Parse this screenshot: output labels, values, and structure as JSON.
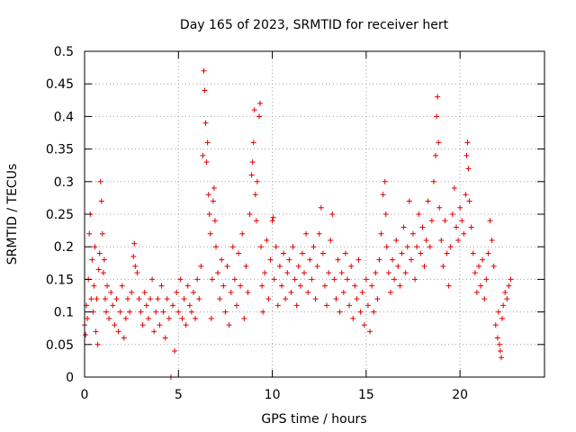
{
  "chart_data": {
    "type": "scatter",
    "title": "Day 165 of 2023, SRMTID for receiver hert",
    "xlabel": "GPS time / hours",
    "ylabel": "SRMTID / TECUs",
    "xlim": [
      0,
      24.5
    ],
    "ylim": [
      0,
      0.5
    ],
    "xticks": [
      0,
      5,
      10,
      15,
      20
    ],
    "xtick_labels": [
      "0",
      "5",
      "10",
      "15",
      "20"
    ],
    "yticks": [
      0,
      0.05,
      0.1,
      0.15,
      0.2,
      0.25,
      0.3,
      0.35,
      0.4,
      0.45,
      0.5
    ],
    "ytick_labels": [
      "0",
      "0.05",
      "0.1",
      "0.15",
      "0.2",
      "0.25",
      "0.3",
      "0.35",
      "0.4",
      "0.45",
      "0.5"
    ],
    "grid": true,
    "marker": "plus",
    "color": "#e00000",
    "series": [
      {
        "name": "SRMTID",
        "points": [
          [
            0.0,
            0.08
          ],
          [
            0.05,
            0.065
          ],
          [
            0.1,
            0.11
          ],
          [
            0.15,
            0.09
          ],
          [
            0.2,
            0.15
          ],
          [
            0.25,
            0.22
          ],
          [
            0.3,
            0.25
          ],
          [
            0.35,
            0.12
          ],
          [
            0.4,
            0.18
          ],
          [
            0.45,
            0.1
          ],
          [
            0.5,
            0.14
          ],
          [
            0.55,
            0.2
          ],
          [
            0.6,
            0.07
          ],
          [
            0.65,
            0.12
          ],
          [
            0.7,
            0.05
          ],
          [
            0.75,
            0.165
          ],
          [
            0.8,
            0.19
          ],
          [
            0.85,
            0.3
          ],
          [
            0.9,
            0.27
          ],
          [
            0.95,
            0.22
          ],
          [
            1.0,
            0.16
          ],
          [
            1.05,
            0.18
          ],
          [
            1.1,
            0.12
          ],
          [
            1.15,
            0.1
          ],
          [
            1.2,
            0.14
          ],
          [
            1.3,
            0.09
          ],
          [
            1.4,
            0.13
          ],
          [
            1.5,
            0.11
          ],
          [
            1.6,
            0.08
          ],
          [
            1.7,
            0.12
          ],
          [
            1.8,
            0.07
          ],
          [
            1.9,
            0.1
          ],
          [
            2.0,
            0.14
          ],
          [
            2.1,
            0.06
          ],
          [
            2.2,
            0.09
          ],
          [
            2.3,
            0.12
          ],
          [
            2.4,
            0.1
          ],
          [
            2.5,
            0.13
          ],
          [
            2.6,
            0.185
          ],
          [
            2.65,
            0.205
          ],
          [
            2.7,
            0.17
          ],
          [
            2.8,
            0.16
          ],
          [
            2.9,
            0.12
          ],
          [
            3.0,
            0.1
          ],
          [
            3.1,
            0.08
          ],
          [
            3.2,
            0.13
          ],
          [
            3.3,
            0.11
          ],
          [
            3.4,
            0.09
          ],
          [
            3.5,
            0.12
          ],
          [
            3.6,
            0.15
          ],
          [
            3.7,
            0.07
          ],
          [
            3.8,
            0.1
          ],
          [
            3.9,
            0.12
          ],
          [
            4.0,
            0.08
          ],
          [
            4.1,
            0.14
          ],
          [
            4.2,
            0.1
          ],
          [
            4.3,
            0.06
          ],
          [
            4.4,
            0.12
          ],
          [
            4.5,
            0.09
          ],
          [
            4.6,
            0.0
          ],
          [
            4.7,
            0.11
          ],
          [
            4.8,
            0.04
          ],
          [
            4.9,
            0.13
          ],
          [
            5.0,
            0.1
          ],
          [
            5.1,
            0.15
          ],
          [
            5.2,
            0.09
          ],
          [
            5.3,
            0.12
          ],
          [
            5.4,
            0.08
          ],
          [
            5.5,
            0.14
          ],
          [
            5.6,
            0.11
          ],
          [
            5.7,
            0.1
          ],
          [
            5.8,
            0.13
          ],
          [
            5.9,
            0.09
          ],
          [
            6.0,
            0.15
          ],
          [
            6.1,
            0.12
          ],
          [
            6.2,
            0.17
          ],
          [
            6.3,
            0.34
          ],
          [
            6.35,
            0.47
          ],
          [
            6.4,
            0.44
          ],
          [
            6.45,
            0.39
          ],
          [
            6.5,
            0.33
          ],
          [
            6.55,
            0.36
          ],
          [
            6.6,
            0.28
          ],
          [
            6.65,
            0.25
          ],
          [
            6.7,
            0.22
          ],
          [
            6.75,
            0.09
          ],
          [
            6.8,
            0.15
          ],
          [
            6.85,
            0.27
          ],
          [
            6.9,
            0.29
          ],
          [
            6.95,
            0.24
          ],
          [
            7.0,
            0.2
          ],
          [
            7.1,
            0.16
          ],
          [
            7.2,
            0.12
          ],
          [
            7.3,
            0.18
          ],
          [
            7.4,
            0.14
          ],
          [
            7.5,
            0.1
          ],
          [
            7.6,
            0.17
          ],
          [
            7.7,
            0.08
          ],
          [
            7.8,
            0.13
          ],
          [
            7.9,
            0.2
          ],
          [
            8.0,
            0.15
          ],
          [
            8.1,
            0.11
          ],
          [
            8.2,
            0.19
          ],
          [
            8.3,
            0.14
          ],
          [
            8.4,
            0.22
          ],
          [
            8.5,
            0.09
          ],
          [
            8.6,
            0.17
          ],
          [
            8.7,
            0.13
          ],
          [
            8.8,
            0.25
          ],
          [
            8.9,
            0.31
          ],
          [
            8.95,
            0.33
          ],
          [
            9.0,
            0.36
          ],
          [
            9.05,
            0.41
          ],
          [
            9.1,
            0.28
          ],
          [
            9.15,
            0.24
          ],
          [
            9.2,
            0.3
          ],
          [
            9.3,
            0.4
          ],
          [
            9.35,
            0.42
          ],
          [
            9.4,
            0.2
          ],
          [
            9.45,
            0.14
          ],
          [
            9.5,
            0.1
          ],
          [
            9.6,
            0.16
          ],
          [
            9.7,
            0.21
          ],
          [
            9.8,
            0.12
          ],
          [
            9.9,
            0.18
          ],
          [
            10.0,
            0.24
          ],
          [
            10.05,
            0.245
          ],
          [
            10.1,
            0.15
          ],
          [
            10.2,
            0.2
          ],
          [
            10.3,
            0.11
          ],
          [
            10.4,
            0.17
          ],
          [
            10.5,
            0.14
          ],
          [
            10.6,
            0.19
          ],
          [
            10.7,
            0.12
          ],
          [
            10.8,
            0.16
          ],
          [
            10.9,
            0.18
          ],
          [
            11.0,
            0.13
          ],
          [
            11.1,
            0.2
          ],
          [
            11.2,
            0.15
          ],
          [
            11.3,
            0.11
          ],
          [
            11.4,
            0.17
          ],
          [
            11.5,
            0.14
          ],
          [
            11.6,
            0.19
          ],
          [
            11.7,
            0.16
          ],
          [
            11.8,
            0.22
          ],
          [
            11.9,
            0.13
          ],
          [
            12.0,
            0.18
          ],
          [
            12.1,
            0.15
          ],
          [
            12.2,
            0.2
          ],
          [
            12.3,
            0.12
          ],
          [
            12.4,
            0.17
          ],
          [
            12.5,
            0.22
          ],
          [
            12.6,
            0.26
          ],
          [
            12.7,
            0.19
          ],
          [
            12.8,
            0.14
          ],
          [
            12.9,
            0.11
          ],
          [
            13.0,
            0.16
          ],
          [
            13.1,
            0.21
          ],
          [
            13.2,
            0.25
          ],
          [
            13.3,
            0.15
          ],
          [
            13.4,
            0.12
          ],
          [
            13.5,
            0.18
          ],
          [
            13.6,
            0.1
          ],
          [
            13.7,
            0.16
          ],
          [
            13.8,
            0.13
          ],
          [
            13.9,
            0.19
          ],
          [
            14.0,
            0.15
          ],
          [
            14.1,
            0.11
          ],
          [
            14.2,
            0.17
          ],
          [
            14.3,
            0.09
          ],
          [
            14.4,
            0.14
          ],
          [
            14.5,
            0.12
          ],
          [
            14.6,
            0.18
          ],
          [
            14.7,
            0.1
          ],
          [
            14.8,
            0.13
          ],
          [
            14.9,
            0.08
          ],
          [
            15.0,
            0.15
          ],
          [
            15.1,
            0.11
          ],
          [
            15.2,
            0.07
          ],
          [
            15.3,
            0.14
          ],
          [
            15.4,
            0.1
          ],
          [
            15.5,
            0.16
          ],
          [
            15.6,
            0.12
          ],
          [
            15.7,
            0.18
          ],
          [
            15.8,
            0.22
          ],
          [
            15.9,
            0.28
          ],
          [
            16.0,
            0.3
          ],
          [
            16.05,
            0.25
          ],
          [
            16.1,
            0.2
          ],
          [
            16.2,
            0.16
          ],
          [
            16.3,
            0.13
          ],
          [
            16.4,
            0.18
          ],
          [
            16.5,
            0.15
          ],
          [
            16.6,
            0.21
          ],
          [
            16.7,
            0.17
          ],
          [
            16.8,
            0.14
          ],
          [
            16.9,
            0.19
          ],
          [
            17.0,
            0.23
          ],
          [
            17.1,
            0.16
          ],
          [
            17.2,
            0.2
          ],
          [
            17.3,
            0.27
          ],
          [
            17.4,
            0.18
          ],
          [
            17.5,
            0.22
          ],
          [
            17.6,
            0.15
          ],
          [
            17.7,
            0.2
          ],
          [
            17.8,
            0.25
          ],
          [
            17.9,
            0.19
          ],
          [
            18.0,
            0.23
          ],
          [
            18.1,
            0.17
          ],
          [
            18.2,
            0.21
          ],
          [
            18.3,
            0.27
          ],
          [
            18.4,
            0.2
          ],
          [
            18.5,
            0.24
          ],
          [
            18.6,
            0.3
          ],
          [
            18.7,
            0.34
          ],
          [
            18.75,
            0.4
          ],
          [
            18.8,
            0.43
          ],
          [
            18.85,
            0.36
          ],
          [
            18.9,
            0.26
          ],
          [
            19.0,
            0.21
          ],
          [
            19.1,
            0.17
          ],
          [
            19.2,
            0.24
          ],
          [
            19.3,
            0.19
          ],
          [
            19.4,
            0.14
          ],
          [
            19.5,
            0.2
          ],
          [
            19.6,
            0.25
          ],
          [
            19.7,
            0.29
          ],
          [
            19.8,
            0.23
          ],
          [
            19.9,
            0.21
          ],
          [
            20.0,
            0.26
          ],
          [
            20.1,
            0.24
          ],
          [
            20.2,
            0.22
          ],
          [
            20.3,
            0.28
          ],
          [
            20.35,
            0.34
          ],
          [
            20.4,
            0.36
          ],
          [
            20.45,
            0.32
          ],
          [
            20.5,
            0.27
          ],
          [
            20.6,
            0.23
          ],
          [
            20.7,
            0.19
          ],
          [
            20.8,
            0.16
          ],
          [
            20.9,
            0.13
          ],
          [
            21.0,
            0.17
          ],
          [
            21.1,
            0.14
          ],
          [
            21.2,
            0.18
          ],
          [
            21.3,
            0.12
          ],
          [
            21.4,
            0.15
          ],
          [
            21.5,
            0.19
          ],
          [
            21.6,
            0.24
          ],
          [
            21.7,
            0.21
          ],
          [
            21.8,
            0.17
          ],
          [
            21.9,
            0.08
          ],
          [
            22.0,
            0.06
          ],
          [
            22.05,
            0.1
          ],
          [
            22.1,
            0.05
          ],
          [
            22.15,
            0.04
          ],
          [
            22.2,
            0.03
          ],
          [
            22.25,
            0.09
          ],
          [
            22.3,
            0.11
          ],
          [
            22.4,
            0.13
          ],
          [
            22.5,
            0.12
          ],
          [
            22.6,
            0.14
          ],
          [
            22.7,
            0.15
          ]
        ]
      }
    ]
  }
}
